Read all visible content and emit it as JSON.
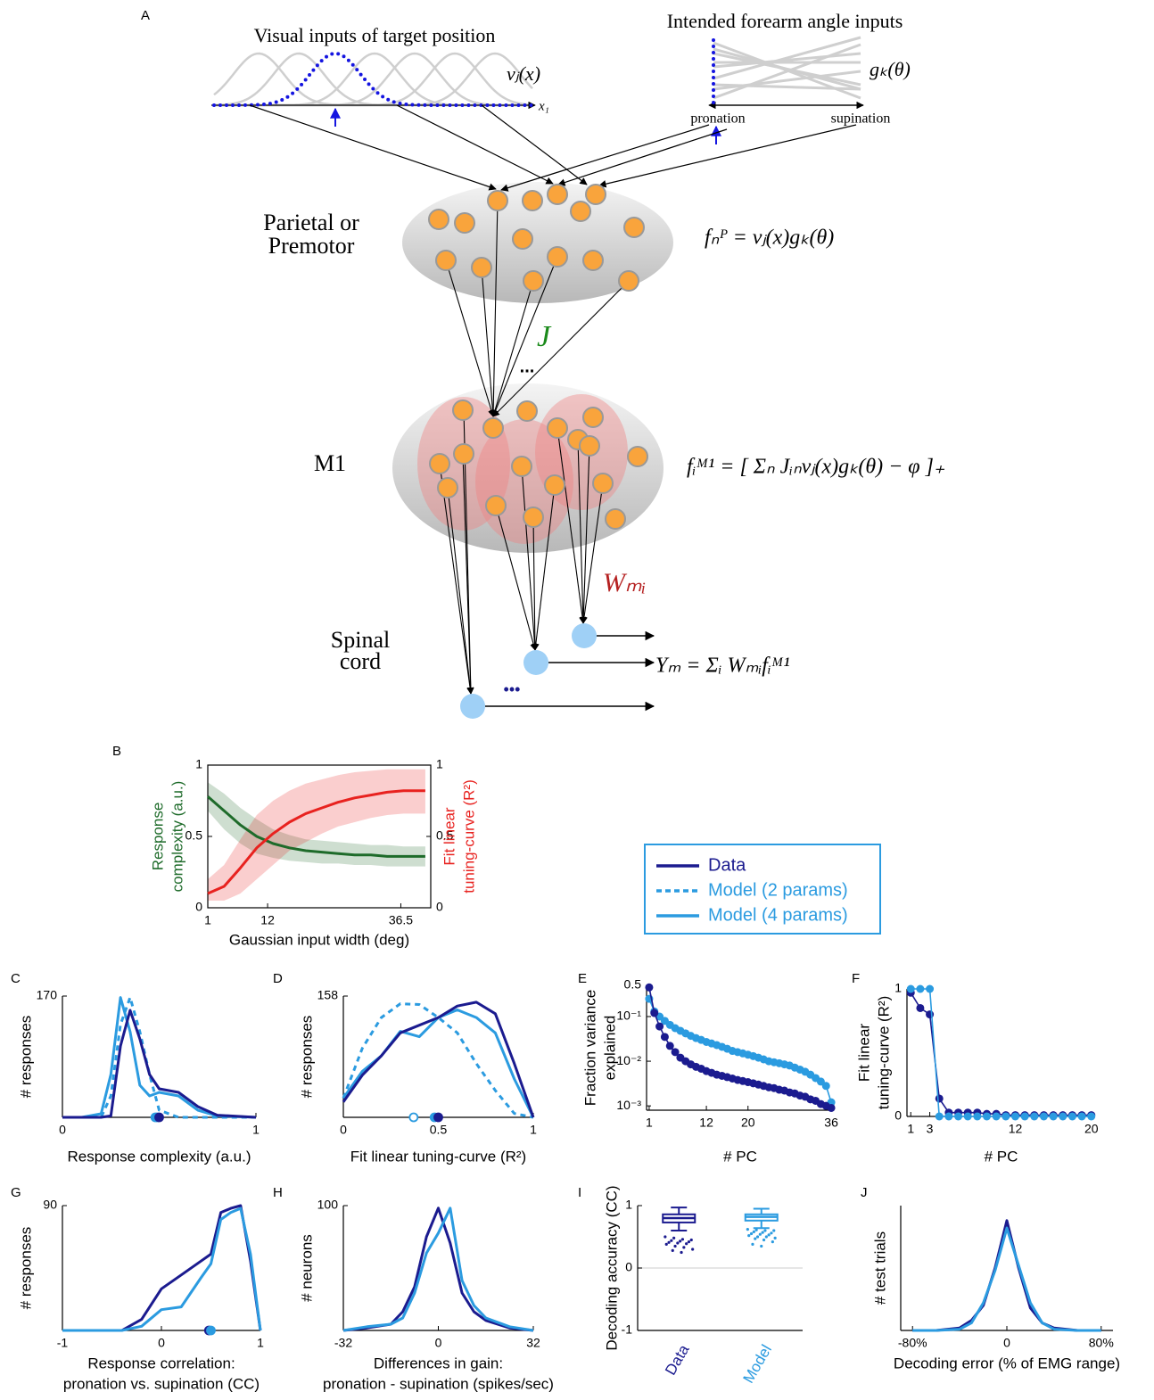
{
  "diagram": {
    "panel": "A",
    "visual_title": "Visual inputs of target position",
    "visual_function": "vⱼ(x)",
    "visual_axis": "x₁",
    "angle_title": "Intended forearm angle inputs",
    "angle_function": "gₖ(θ)",
    "angle_left": "pronation",
    "angle_right": "supination",
    "parietal_label": [
      "Parietal or",
      "Premotor"
    ],
    "parietal_equation": "fₙᴾ = vⱼ(x)gₖ(θ)",
    "weights_J": "J",
    "ellipsis": "...",
    "m1_label": "M1",
    "m1_equation": "fᵢᴹ¹ = [ Σₙ Jᵢₙvⱼ(x)gₖ(θ) − φ ]₊",
    "weights_W": "Wₘᵢ",
    "spinal_label": [
      "Spinal",
      "cord"
    ],
    "spinal_equation": "Yₘ = Σᵢ Wₘᵢfᵢᴹ¹",
    "spinal_ellipsis": "•••"
  },
  "legend": {
    "entries": [
      {
        "name": "Data",
        "color": "#1b1b8f",
        "dash": false
      },
      {
        "name": "Model (2 params)",
        "color": "#2b9be0",
        "dash": true
      },
      {
        "name": "Model (4 params)",
        "color": "#2b9be0",
        "dash": false
      }
    ]
  },
  "chart_data": [
    {
      "type": "line",
      "panel": "B",
      "xlabel": "Gaussian input width (deg)",
      "ylabel": [
        "Response",
        "complexity (a.u.)"
      ],
      "y2label": [
        "Fit linear",
        "tuning-curve (R²)"
      ],
      "x": [
        1,
        4,
        7,
        10,
        13,
        16,
        19,
        22,
        25,
        28,
        31,
        34,
        37,
        41
      ],
      "xlim": [
        1,
        42
      ],
      "xticks": [
        1,
        12,
        36.5
      ],
      "ylim": [
        0,
        1
      ],
      "yticks": [
        0,
        0.5,
        1
      ],
      "y2lim": [
        0,
        1
      ],
      "y2ticks": [
        0,
        0.5,
        1
      ],
      "series": [
        {
          "color": "#1e6b2a",
          "values": [
            0.78,
            0.68,
            0.58,
            0.5,
            0.45,
            0.42,
            0.4,
            0.39,
            0.38,
            0.37,
            0.37,
            0.36,
            0.36,
            0.36
          ],
          "lower": [
            0.68,
            0.55,
            0.45,
            0.38,
            0.35,
            0.33,
            0.32,
            0.31,
            0.31,
            0.3,
            0.3,
            0.29,
            0.29,
            0.29
          ],
          "upper": [
            0.88,
            0.8,
            0.7,
            0.62,
            0.55,
            0.51,
            0.48,
            0.47,
            0.46,
            0.45,
            0.44,
            0.44,
            0.43,
            0.43
          ]
        },
        {
          "color": "#e8221f",
          "axis": "y2",
          "values": [
            0.1,
            0.15,
            0.28,
            0.42,
            0.52,
            0.6,
            0.66,
            0.7,
            0.74,
            0.77,
            0.79,
            0.81,
            0.82,
            0.82
          ],
          "lower": [
            0.05,
            0.05,
            0.1,
            0.2,
            0.3,
            0.4,
            0.46,
            0.52,
            0.57,
            0.6,
            0.63,
            0.65,
            0.66,
            0.66
          ],
          "upper": [
            0.2,
            0.3,
            0.48,
            0.65,
            0.75,
            0.82,
            0.87,
            0.9,
            0.93,
            0.95,
            0.96,
            0.97,
            0.97,
            0.97
          ]
        }
      ]
    },
    {
      "type": "line",
      "panel": "C",
      "xlabel": "Response complexity (a.u.)",
      "ylabel": "# responses",
      "x": [
        0,
        0.1,
        0.2,
        0.25,
        0.3,
        0.35,
        0.4,
        0.45,
        0.5,
        0.6,
        0.7,
        0.8,
        1
      ],
      "xlim": [
        0,
        1
      ],
      "xticks": [
        0,
        1
      ],
      "ylim": [
        0,
        170
      ],
      "yticks": [
        170
      ],
      "series": [
        {
          "color": "#2b9be0",
          "dash": true,
          "values": [
            0,
            0,
            0,
            30,
            130,
            168,
            120,
            60,
            10,
            0,
            0,
            0,
            0
          ],
          "mean": 0.49
        },
        {
          "color": "#2b9be0",
          "values": [
            0,
            0,
            5,
            60,
            168,
            120,
            45,
            30,
            35,
            30,
            10,
            2,
            0
          ],
          "mean": 0.48
        },
        {
          "color": "#1b1b8f",
          "values": [
            0,
            0,
            0,
            2,
            100,
            150,
            110,
            60,
            40,
            35,
            15,
            3,
            0
          ],
          "mean": 0.5
        }
      ]
    },
    {
      "type": "line",
      "panel": "D",
      "xlabel": "Fit linear tuning-curve (R²)",
      "ylabel": "# responses",
      "x": [
        0,
        0.1,
        0.2,
        0.3,
        0.4,
        0.5,
        0.6,
        0.7,
        0.8,
        0.9,
        1
      ],
      "xlim": [
        0,
        1
      ],
      "xticks": [
        0,
        0.5,
        1
      ],
      "ylim": [
        0,
        158
      ],
      "yticks": [
        158
      ],
      "series": [
        {
          "color": "#2b9be0",
          "dash": true,
          "values": [
            25,
            90,
            130,
            148,
            147,
            130,
            110,
            70,
            35,
            5,
            0
          ],
          "mean": 0.37,
          "mean_open": true
        },
        {
          "color": "#2b9be0",
          "values": [
            25,
            60,
            80,
            112,
            105,
            130,
            140,
            130,
            110,
            50,
            0
          ],
          "mean": 0.48
        },
        {
          "color": "#1b1b8f",
          "values": [
            20,
            55,
            80,
            110,
            120,
            130,
            145,
            150,
            135,
            70,
            0
          ],
          "mean": 0.5
        }
      ]
    },
    {
      "type": "line",
      "panel": "E",
      "xlabel": "# PC",
      "ylabel": [
        "Fraction variance",
        "explained"
      ],
      "log_y": true,
      "markers": true,
      "x": [
        1,
        2,
        3,
        4,
        5,
        6,
        7,
        8,
        9,
        10,
        11,
        12,
        13,
        14,
        15,
        16,
        17,
        18,
        19,
        20,
        21,
        22,
        23,
        24,
        25,
        26,
        27,
        28,
        29,
        30,
        31,
        32,
        33,
        34,
        35,
        36
      ],
      "xlim": [
        0.5,
        36.5
      ],
      "xticks": [
        1,
        12,
        20,
        36
      ],
      "ylim": [
        0.0008,
        0.5
      ],
      "yticks": [
        0.5,
        {
          "value": 0.1,
          "label": "10⁻¹"
        },
        {
          "value": 0.01,
          "label": "10⁻²"
        },
        {
          "value": 0.001,
          "label": "10⁻³"
        }
      ],
      "series": [
        {
          "color": "#2b9be0",
          "values": [
            0.25,
            0.13,
            0.1,
            0.08,
            0.065,
            0.055,
            0.048,
            0.042,
            0.037,
            0.033,
            0.03,
            0.027,
            0.025,
            0.023,
            0.021,
            0.019,
            0.017,
            0.016,
            0.015,
            0.014,
            0.013,
            0.012,
            0.011,
            0.01,
            0.0095,
            0.009,
            0.0085,
            0.008,
            0.0072,
            0.0065,
            0.0058,
            0.005,
            0.0042,
            0.0035,
            0.0028,
            0.0012
          ]
        },
        {
          "color": "#1b1b8f",
          "values": [
            0.45,
            0.12,
            0.06,
            0.035,
            0.022,
            0.016,
            0.012,
            0.01,
            0.0085,
            0.0075,
            0.0068,
            0.006,
            0.0055,
            0.005,
            0.0047,
            0.0044,
            0.0041,
            0.0038,
            0.0036,
            0.0034,
            0.0032,
            0.003,
            0.0028,
            0.0026,
            0.0025,
            0.0023,
            0.0022,
            0.002,
            0.0019,
            0.0017,
            0.0016,
            0.0014,
            0.0013,
            0.0011,
            0.001,
            0.0009
          ]
        }
      ]
    },
    {
      "type": "line",
      "panel": "F",
      "xlabel": "# PC",
      "ylabel": [
        "Fit linear",
        "tuning-curve (R²)"
      ],
      "markers": true,
      "x": [
        1,
        2,
        3,
        4,
        5,
        6,
        7,
        8,
        9,
        10,
        11,
        12,
        13,
        14,
        15,
        16,
        17,
        18,
        19,
        20
      ],
      "xlim": [
        0.6,
        20.4
      ],
      "xticks": [
        1,
        3,
        12,
        20
      ],
      "ylim": [
        0,
        1
      ],
      "yticks": [
        0,
        1
      ],
      "series": [
        {
          "color": "#1b1b8f",
          "values": [
            0.97,
            0.85,
            0.8,
            0.14,
            0.03,
            0.03,
            0.03,
            0.03,
            0.02,
            0.02,
            0.01,
            0.01,
            0.01,
            0.01,
            0.01,
            0.01,
            0.01,
            0.01,
            0.01,
            0.01
          ]
        },
        {
          "color": "#2b9be0",
          "values": [
            1,
            1,
            1,
            0,
            0,
            0,
            0,
            0,
            0,
            0,
            0,
            0,
            0,
            0,
            0,
            0,
            0,
            0,
            0,
            0
          ]
        }
      ]
    },
    {
      "type": "line",
      "panel": "G",
      "xlabel": [
        "Response correlation:",
        "pronation vs. supination (CC)"
      ],
      "ylabel": "# responses",
      "x": [
        -1,
        -0.8,
        -0.6,
        -0.4,
        -0.2,
        0,
        0.2,
        0.4,
        0.5,
        0.6,
        0.7,
        0.8,
        0.9,
        1
      ],
      "xlim": [
        -1,
        1
      ],
      "xticks": [
        -1,
        0,
        1
      ],
      "ylim": [
        0,
        90
      ],
      "yticks": [
        90
      ],
      "series": [
        {
          "color": "#1b1b8f",
          "values": [
            0,
            0,
            0,
            0,
            8,
            30,
            40,
            50,
            55,
            85,
            88,
            90,
            50,
            0
          ],
          "mean": 0.48
        },
        {
          "color": "#2b9be0",
          "values": [
            0,
            0,
            0,
            0,
            3,
            15,
            17,
            38,
            48,
            80,
            85,
            88,
            55,
            0
          ],
          "mean": 0.5
        }
      ]
    },
    {
      "type": "line",
      "panel": "H",
      "xlabel": [
        "Differences in gain:",
        "pronation - supination (spikes/sec)"
      ],
      "ylabel": "# neurons",
      "x": [
        -32,
        -24,
        -16,
        -12,
        -8,
        -4,
        0,
        4,
        8,
        12,
        16,
        24,
        32
      ],
      "xlim": [
        -32,
        32
      ],
      "xticks": [
        -32,
        0,
        32
      ],
      "ylim": [
        0,
        100
      ],
      "yticks": [
        100
      ],
      "series": [
        {
          "color": "#1b1b8f",
          "values": [
            0,
            2,
            5,
            15,
            35,
            75,
            98,
            70,
            30,
            15,
            8,
            2,
            0
          ]
        },
        {
          "color": "#2b9be0",
          "values": [
            0,
            3,
            5,
            10,
            30,
            62,
            78,
            98,
            40,
            20,
            10,
            3,
            0
          ]
        }
      ]
    },
    {
      "type": "box",
      "panel": "I",
      "ylabel": "Decoding accuracy (CC)",
      "categories": [
        "Data",
        "Model"
      ],
      "ylim": [
        -1,
        1
      ],
      "yticks": [
        -1,
        0,
        1
      ],
      "zero_line": true,
      "boxes": [
        {
          "color": "#1b1b8f",
          "whisker_low": 0.6,
          "q1": 0.73,
          "median": 0.8,
          "q3": 0.86,
          "whisker_high": 0.97,
          "outliers": [
            0.5,
            0.48,
            0.46,
            0.45,
            0.44,
            0.43,
            0.42,
            0.41,
            0.4,
            0.39,
            0.38,
            0.35,
            0.33,
            0.3,
            0.28,
            0.25
          ]
        },
        {
          "color": "#2b9be0",
          "whisker_low": 0.64,
          "q1": 0.76,
          "median": 0.82,
          "q3": 0.86,
          "whisker_high": 0.95,
          "outliers": [
            0.62,
            0.61,
            0.6,
            0.6,
            0.58,
            0.57,
            0.56,
            0.55,
            0.54,
            0.53,
            0.52,
            0.5,
            0.5,
            0.48,
            0.47,
            0.45,
            0.42,
            0.38,
            0.35
          ]
        }
      ]
    },
    {
      "type": "line",
      "panel": "J",
      "xlabel": "Decoding error (% of EMG range)",
      "ylabel": "# test trials",
      "x": [
        -80,
        -60,
        -40,
        -30,
        -20,
        -10,
        0,
        10,
        20,
        30,
        40,
        60,
        80
      ],
      "xlim": [
        -90,
        90
      ],
      "xticks": [
        {
          "value": -80,
          "label": "-80%"
        },
        0,
        {
          "value": 80,
          "label": "80%"
        }
      ],
      "ylim": [
        0,
        100
      ],
      "series": [
        {
          "color": "#1b1b8f",
          "values": [
            0,
            0,
            2,
            8,
            20,
            50,
            88,
            50,
            18,
            6,
            2,
            0,
            0
          ]
        },
        {
          "color": "#2b9be0",
          "values": [
            0,
            0,
            1,
            6,
            22,
            48,
            82,
            52,
            22,
            6,
            1,
            0,
            0
          ]
        }
      ]
    }
  ]
}
